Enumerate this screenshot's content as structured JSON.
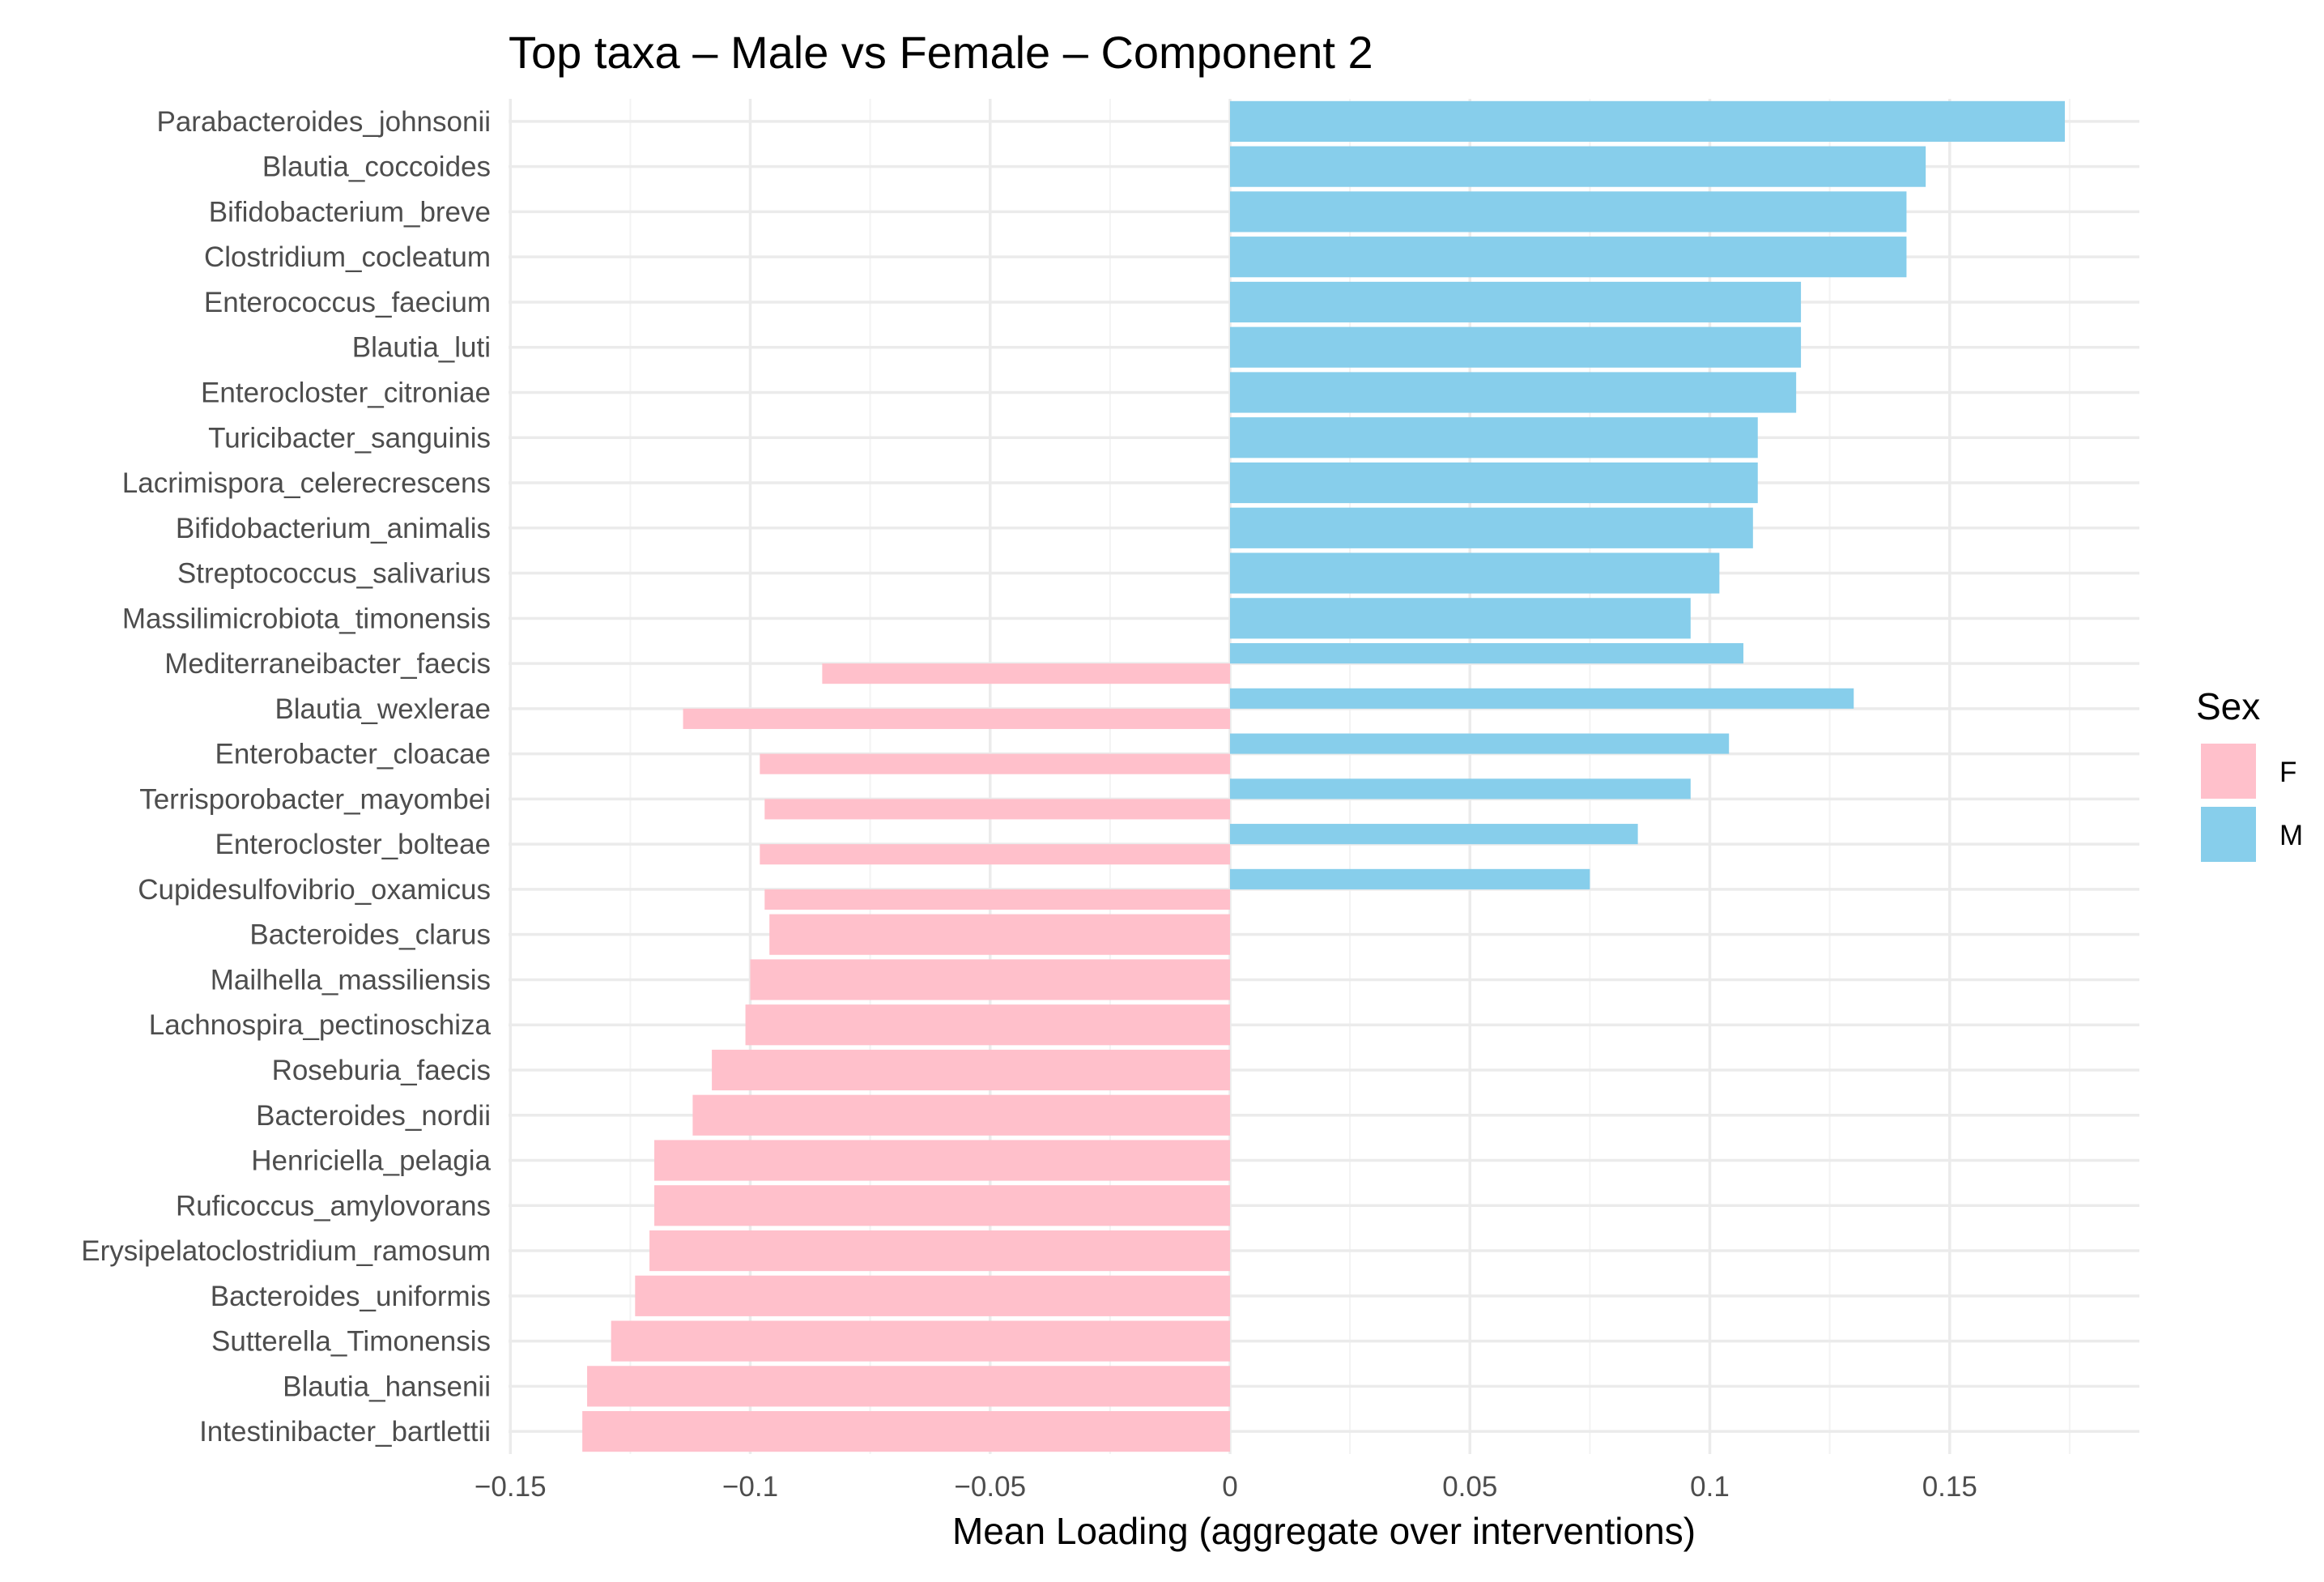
{
  "chart_data": {
    "type": "bar",
    "orientation": "horizontal",
    "title": "Top taxa – Male vs Female – Component 2",
    "xlabel": "Mean Loading (aggregate over interventions)",
    "ylabel": "",
    "xlim": [
      -0.15,
      0.19
    ],
    "x_ticks": [
      -0.15,
      -0.1,
      -0.05,
      0,
      0.05,
      0.1,
      0.15
    ],
    "x_tick_labels": [
      "−0.15",
      "−0.1",
      "−0.05",
      "0",
      "0.05",
      "0.1",
      "0.15"
    ],
    "grid": true,
    "legend": {
      "title": "Sex",
      "position": "right",
      "entries": [
        {
          "key": "F",
          "label": "F",
          "color": "#FFC0CB"
        },
        {
          "key": "M",
          "label": "M",
          "color": "#87CEEB"
        }
      ]
    },
    "categories": [
      "Parabacteroides_johnsonii",
      "Blautia_coccoides",
      "Bifidobacterium_breve",
      "Clostridium_cocleatum",
      "Enterococcus_faecium",
      "Blautia_luti",
      "Enterocloster_citroniae",
      "Turicibacter_sanguinis",
      "Lacrimispora_celerecrescens",
      "Bifidobacterium_animalis",
      "Streptococcus_salivarius",
      "Massilimicrobiota_timonensis",
      "Mediterraneibacter_faecis",
      "Blautia_wexlerae",
      "Enterobacter_cloacae",
      "Terrisporobacter_mayombei",
      "Enterocloster_bolteae",
      "Cupidesulfovibrio_oxamicus",
      "Bacteroides_clarus",
      "Mailhella_massiliensis",
      "Lachnospira_pectinoschiza",
      "Roseburia_faecis",
      "Bacteroides_nordii",
      "Henriciella_pelagia",
      "Ruficoccus_amylovorans",
      "Erysipelatoclostridium_ramosum",
      "Bacteroides_uniformis",
      "Sutterella_Timonensis",
      "Blautia_hansenii",
      "Intestinibacter_bartlettii"
    ],
    "series": [
      {
        "name": "F",
        "color": "#FFC0CB",
        "values": [
          null,
          null,
          null,
          null,
          null,
          null,
          null,
          null,
          null,
          null,
          null,
          null,
          -0.085,
          -0.114,
          -0.098,
          -0.097,
          -0.098,
          -0.097,
          -0.096,
          -0.1,
          -0.101,
          -0.108,
          -0.112,
          -0.12,
          -0.12,
          -0.121,
          -0.124,
          -0.129,
          -0.134,
          -0.135
        ]
      },
      {
        "name": "M",
        "color": "#87CEEB",
        "values": [
          0.174,
          0.145,
          0.141,
          0.141,
          0.119,
          0.119,
          0.118,
          0.11,
          0.11,
          0.109,
          0.102,
          0.096,
          0.107,
          0.13,
          0.104,
          0.096,
          0.085,
          0.075,
          null,
          null,
          null,
          null,
          null,
          null,
          null,
          null,
          null,
          null,
          null,
          null
        ]
      }
    ]
  }
}
